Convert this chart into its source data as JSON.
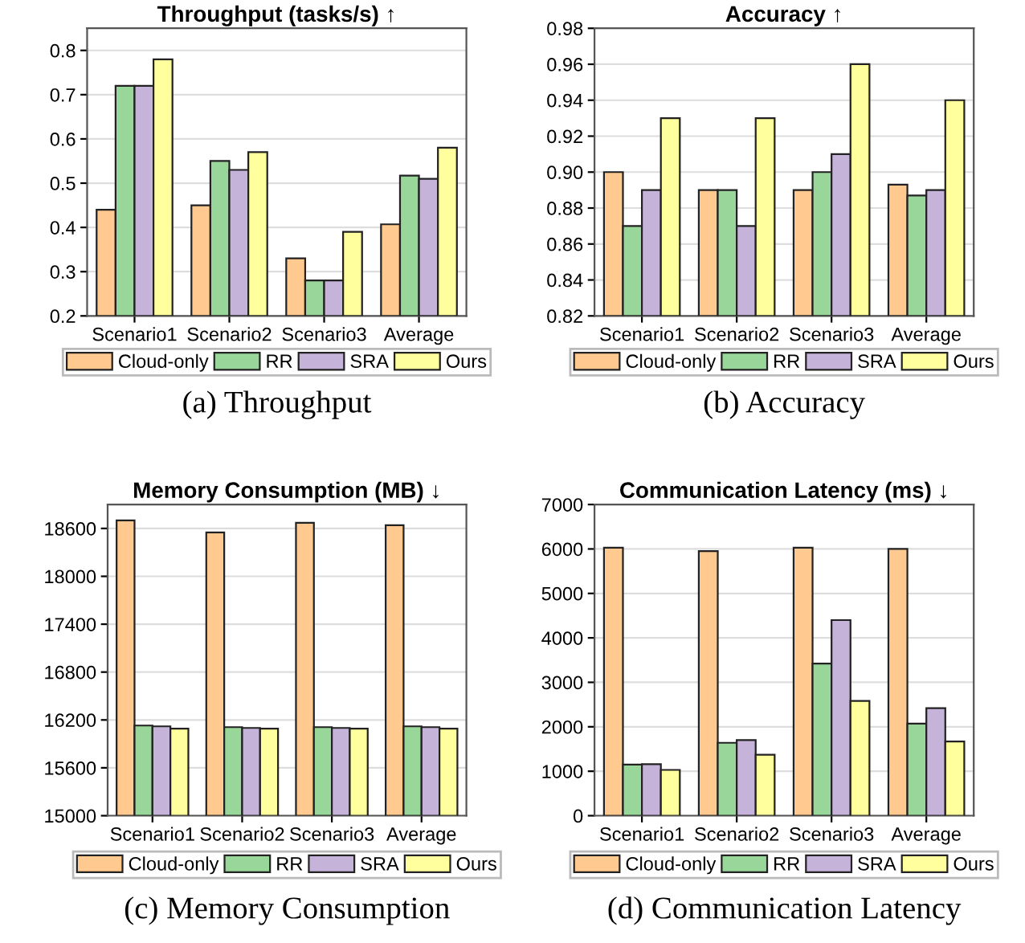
{
  "chart_data": [
    {
      "type": "bar",
      "title": "Throughput (tasks/s) ↑",
      "categories": [
        "Scenario1",
        "Scenario2",
        "Scenario3",
        "Average"
      ],
      "series": [
        {
          "name": "Cloud-only",
          "color": "#ffc98f",
          "values": [
            0.44,
            0.45,
            0.33,
            0.407
          ]
        },
        {
          "name": "RR",
          "color": "#98d69a",
          "values": [
            0.72,
            0.55,
            0.28,
            0.517
          ]
        },
        {
          "name": "SRA",
          "color": "#c5b3d9",
          "values": [
            0.72,
            0.53,
            0.28,
            0.51
          ]
        },
        {
          "name": "Ours",
          "color": "#ffff9e",
          "values": [
            0.78,
            0.57,
            0.39,
            0.58
          ]
        }
      ],
      "ylim": [
        0.2,
        0.85
      ],
      "yticks": [
        0.2,
        0.3,
        0.4,
        0.5,
        0.6,
        0.7,
        0.8
      ],
      "grid": "y",
      "legend": "bottom",
      "annotations": [
        "(a) Throughput"
      ]
    },
    {
      "type": "bar",
      "title": "Accuracy ↑",
      "categories": [
        "Scenario1",
        "Scenario2",
        "Scenario3",
        "Average"
      ],
      "series": [
        {
          "name": "Cloud-only",
          "color": "#ffc98f",
          "values": [
            0.9,
            0.89,
            0.89,
            0.893
          ]
        },
        {
          "name": "RR",
          "color": "#98d69a",
          "values": [
            0.87,
            0.89,
            0.9,
            0.887
          ]
        },
        {
          "name": "SRA",
          "color": "#c5b3d9",
          "values": [
            0.89,
            0.87,
            0.91,
            0.89
          ]
        },
        {
          "name": "Ours",
          "color": "#ffff9e",
          "values": [
            0.93,
            0.93,
            0.96,
            0.94
          ]
        }
      ],
      "ylim": [
        0.82,
        0.98
      ],
      "yticks": [
        {
          "value": 0.82,
          "label": "0.82"
        },
        {
          "value": 0.84,
          "label": "0.84"
        },
        {
          "value": 0.86,
          "label": "0.86"
        },
        {
          "value": 0.88,
          "label": "0.88"
        },
        {
          "value": 0.9,
          "label": "0.90"
        },
        {
          "value": 0.92,
          "label": "0.92"
        },
        {
          "value": 0.94,
          "label": "0.94"
        },
        {
          "value": 0.96,
          "label": "0.96"
        },
        {
          "value": 0.98,
          "label": "0.98"
        }
      ],
      "grid": "y",
      "legend": "bottom",
      "annotations": [
        "(b) Accuracy"
      ]
    },
    {
      "type": "bar",
      "title": "Memory Consumption (MB) ↓",
      "categories": [
        "Scenario1",
        "Scenario2",
        "Scenario3",
        "Average"
      ],
      "series": [
        {
          "name": "Cloud-only",
          "color": "#ffc98f",
          "values": [
            18700,
            18550,
            18670,
            18640
          ]
        },
        {
          "name": "RR",
          "color": "#98d69a",
          "values": [
            16130,
            16110,
            16110,
            16120
          ]
        },
        {
          "name": "SRA",
          "color": "#c5b3d9",
          "values": [
            16120,
            16100,
            16100,
            16110
          ]
        },
        {
          "name": "Ours",
          "color": "#ffff9e",
          "values": [
            16090,
            16090,
            16090,
            16090
          ]
        }
      ],
      "ylim": [
        15000,
        18900
      ],
      "yticks": [
        15000,
        15600,
        16200,
        16800,
        17400,
        18000,
        18600
      ],
      "grid": "y",
      "legend": "bottom",
      "annotations": [
        "(c) Memory Consumption"
      ]
    },
    {
      "type": "bar",
      "title": "Communication Latency (ms) ↓",
      "categories": [
        "Scenario1",
        "Scenario2",
        "Scenario3",
        "Average"
      ],
      "series": [
        {
          "name": "Cloud-only",
          "color": "#ffc98f",
          "values": [
            6030,
            5950,
            6030,
            6000
          ]
        },
        {
          "name": "RR",
          "color": "#98d69a",
          "values": [
            1150,
            1640,
            3420,
            2070
          ]
        },
        {
          "name": "SRA",
          "color": "#c5b3d9",
          "values": [
            1160,
            1700,
            4400,
            2420
          ]
        },
        {
          "name": "Ours",
          "color": "#ffff9e",
          "values": [
            1030,
            1370,
            2580,
            1670
          ]
        }
      ],
      "ylim": [
        0,
        7000
      ],
      "yticks": [
        0,
        1000,
        2000,
        3000,
        4000,
        5000,
        6000,
        7000
      ],
      "grid": "y",
      "legend": "bottom",
      "annotations": [
        "(d) Communication Latency"
      ]
    }
  ]
}
